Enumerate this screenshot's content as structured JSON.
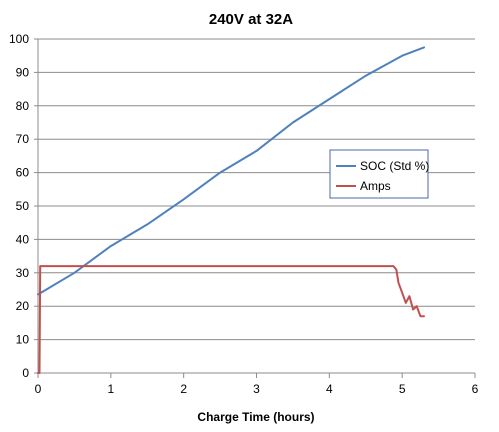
{
  "chart_data": {
    "type": "line",
    "title": "240V at 32A",
    "xlabel": "Charge Time (hours)",
    "ylabel": "",
    "xlim": [
      0,
      6
    ],
    "ylim": [
      0,
      100
    ],
    "xticks": [
      "0",
      "1",
      "2",
      "3",
      "4",
      "5",
      "6"
    ],
    "yticks": [
      "0",
      "10",
      "20",
      "30",
      "40",
      "50",
      "60",
      "70",
      "80",
      "90",
      "100"
    ],
    "grid": true,
    "legend_position": "right",
    "series": [
      {
        "name": "SOC (Std %)",
        "color": "#4f81bd",
        "x": [
          0.0,
          0.5,
          1.0,
          1.5,
          2.0,
          2.5,
          3.0,
          3.5,
          4.0,
          4.5,
          5.0,
          5.3
        ],
        "y": [
          23.5,
          30.0,
          38.0,
          44.5,
          52.0,
          60.0,
          66.5,
          75.0,
          82.0,
          89.0,
          95.0,
          97.5
        ]
      },
      {
        "name": "Amps",
        "color": "#c0504d",
        "x": [
          0.0,
          0.02,
          0.03,
          0.05,
          0.5,
          1.0,
          2.0,
          3.0,
          4.0,
          4.8,
          4.88,
          4.92,
          4.95,
          5.0,
          5.05,
          5.1,
          5.15,
          5.2,
          5.25,
          5.3
        ],
        "y": [
          0,
          0,
          32,
          32,
          32,
          32,
          32,
          32,
          32,
          32,
          32,
          31,
          27,
          24,
          21,
          23,
          19,
          20,
          17,
          17
        ]
      }
    ]
  }
}
